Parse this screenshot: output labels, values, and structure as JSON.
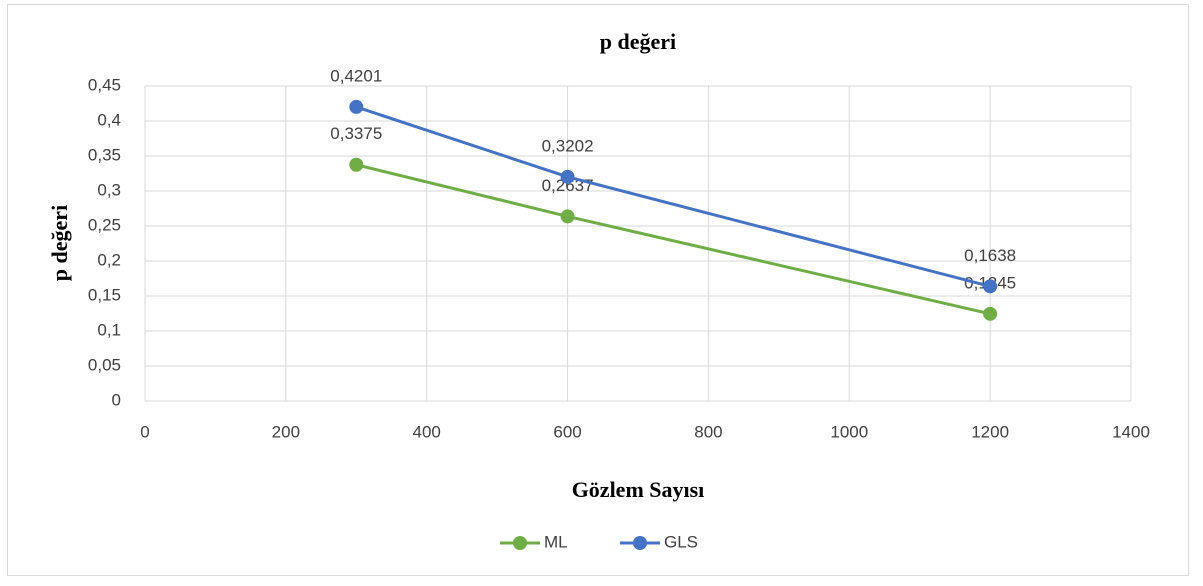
{
  "chart_data": {
    "type": "line",
    "title": "p değeri",
    "xlabel": "Gözlem Sayısı",
    "ylabel": "p değeri",
    "x": [
      300,
      600,
      1200
    ],
    "series": [
      {
        "name": "ML",
        "color": "#70ad47",
        "values": [
          0.3375,
          0.2637,
          0.1245
        ],
        "value_labels": [
          "0,3375",
          "0,2637",
          "0,1245"
        ]
      },
      {
        "name": "GLS",
        "color": "#4472c4",
        "values": [
          0.4201,
          0.3202,
          0.1638
        ],
        "value_labels": [
          "0,4201",
          "0,3202",
          "0,1638"
        ]
      }
    ],
    "xlim": [
      0,
      1400
    ],
    "xticks": [
      0,
      200,
      400,
      600,
      800,
      1000,
      1200,
      1400
    ],
    "ylim": [
      0,
      0.45
    ],
    "yticks": [
      0,
      {
        "value": 0.05,
        "label": "0,05"
      },
      {
        "value": 0.1,
        "label": "0,1"
      },
      {
        "value": 0.15,
        "label": "0,15"
      },
      {
        "value": 0.2,
        "label": "0,2"
      },
      {
        "value": 0.25,
        "label": "0,25"
      },
      {
        "value": 0.3,
        "label": "0,3"
      },
      {
        "value": 0.35,
        "label": "0,35"
      },
      {
        "value": 0.4,
        "label": "0,4"
      },
      {
        "value": 0.45,
        "label": "0,45"
      }
    ],
    "grid": true,
    "legend": "bottom"
  }
}
